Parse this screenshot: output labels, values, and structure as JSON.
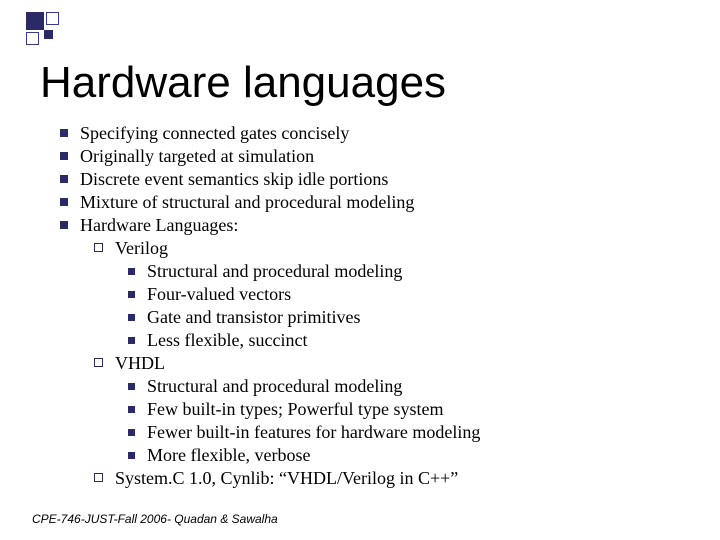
{
  "title": "Hardware languages",
  "colors": {
    "bullet_fill": "#2a2a66",
    "bullet_border": "#3a3a8a",
    "background": "#ffffff",
    "text": "#000000"
  },
  "typography": {
    "title_font": "Arial",
    "title_size_pt": 33,
    "body_font": "Times New Roman",
    "body_size_pt": 14,
    "footer_font": "Arial",
    "footer_size_pt": 9,
    "footer_style": "italic"
  },
  "bullets": {
    "b1": "Specifying connected gates concisely",
    "b2": "Originally targeted at simulation",
    "b3": "Discrete event semantics skip idle portions",
    "b4": "Mixture of structural and procedural modeling",
    "b5": "Hardware Languages:",
    "b5_1": "Verilog",
    "b5_1_1": "Structural and procedural modeling",
    "b5_1_2": "Four-valued vectors",
    "b5_1_3": "Gate and transistor primitives",
    "b5_1_4": "Less flexible, succinct",
    "b5_2": "VHDL",
    "b5_2_1": "Structural and procedural modeling",
    "b5_2_2": "Few built-in types; Powerful type system",
    "b5_2_3": "Fewer built-in features for hardware modeling",
    "b5_2_4": "More flexible, verbose",
    "b5_3": "System.C 1.0, Cynlib: “VHDL/Verilog in C++”"
  },
  "footer": "CPE-746-JUST-Fall 2006- Quadan & Sawalha"
}
